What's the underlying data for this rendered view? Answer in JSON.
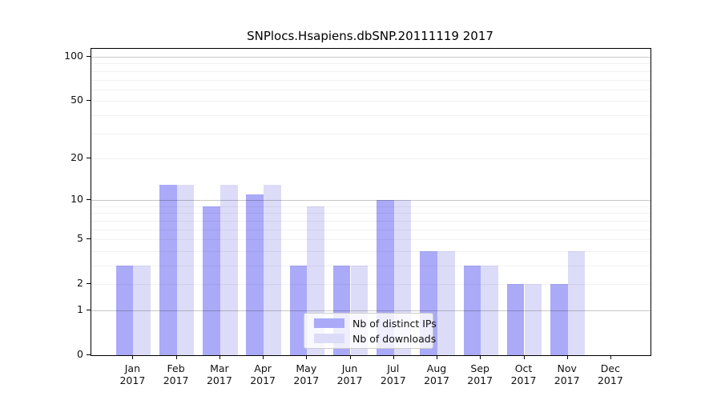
{
  "title": "SNPlocs.Hsapiens.dbSNP.20111119 2017",
  "colors": {
    "ips_bar": "#aaaaf8",
    "downloads_bar": "#dcdcf8",
    "axis": "#000000",
    "legend_border": "#cccccc"
  },
  "chart_data": {
    "type": "bar",
    "title": "SNPlocs.Hsapiens.dbSNP.20111119 2017",
    "scale": "log10(1+x)",
    "categories": [
      "Jan",
      "Feb",
      "Mar",
      "Apr",
      "May",
      "Jun",
      "Jul",
      "Aug",
      "Sep",
      "Oct",
      "Nov",
      "Dec"
    ],
    "year": "2017",
    "series": [
      {
        "name": "Nb of distinct IPs",
        "color": "#aaaaf8",
        "values": [
          3,
          13,
          9,
          11,
          3,
          3,
          10,
          4,
          3,
          2,
          2,
          0
        ]
      },
      {
        "name": "Nb of downloads",
        "color": "#dcdcf8",
        "values": [
          3,
          13,
          13,
          13,
          9,
          3,
          10,
          4,
          3,
          2,
          4,
          0
        ]
      }
    ],
    "yticks": [
      0,
      1,
      2,
      5,
      10,
      20,
      50,
      100
    ],
    "major_gridlines": [
      1,
      10,
      100
    ],
    "minor_gridlines": [
      2,
      3,
      4,
      5,
      6,
      7,
      8,
      9,
      20,
      30,
      40,
      50,
      60,
      70,
      80,
      90
    ],
    "ylim": [
      0,
      113
    ],
    "grid": true,
    "legend_position": "lower-center"
  },
  "legend": {
    "items": [
      {
        "label": "Nb of distinct IPs"
      },
      {
        "label": "Nb of downloads"
      }
    ]
  }
}
